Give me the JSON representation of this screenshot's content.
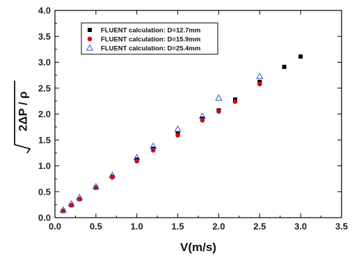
{
  "chart_data": {
    "type": "scatter",
    "title": "",
    "xlabel": "V(m/s)",
    "ylabel_radicand": "2ΔP / ρ",
    "xlim": [
      0.0,
      3.5
    ],
    "ylim": [
      0.0,
      4.0
    ],
    "x_ticks": [
      "0.0",
      "0.5",
      "1.0",
      "1.5",
      "2.0",
      "2.5",
      "3.0",
      "3.5"
    ],
    "y_ticks": [
      "0.0",
      "0.5",
      "1.0",
      "1.5",
      "2.0",
      "2.5",
      "3.0",
      "3.5",
      "4.0"
    ],
    "grid": false,
    "legend_position": "top-left",
    "series": [
      {
        "name": "FLUENT calculation: D=12.7mm",
        "marker": "square",
        "color": "#000000",
        "x": [
          0.1,
          0.2,
          0.3,
          0.5,
          0.7,
          1.0,
          1.2,
          1.5,
          1.8,
          2.0,
          2.2,
          2.5,
          2.8,
          3.0
        ],
        "y": [
          0.13,
          0.24,
          0.36,
          0.58,
          0.79,
          1.12,
          1.33,
          1.63,
          1.91,
          2.07,
          2.28,
          2.62,
          2.91,
          3.11
        ]
      },
      {
        "name": "FLUENT calculation: D=15.9mm",
        "marker": "circle",
        "color": "#e00000",
        "x": [
          0.1,
          0.2,
          0.3,
          0.5,
          0.7,
          1.0,
          1.2,
          1.5,
          1.8,
          2.0,
          2.2,
          2.5
        ],
        "y": [
          0.13,
          0.24,
          0.36,
          0.58,
          0.78,
          1.09,
          1.3,
          1.59,
          1.88,
          2.05,
          2.24,
          2.58
        ]
      },
      {
        "name": "FLUENT calculation: D=25.4mm",
        "marker": "triangle-open",
        "color": "#3355cc",
        "x": [
          0.1,
          0.2,
          0.3,
          0.5,
          0.7,
          1.0,
          1.2,
          1.5,
          1.8,
          2.0,
          2.5
        ],
        "y": [
          0.15,
          0.27,
          0.39,
          0.6,
          0.82,
          1.16,
          1.38,
          1.71,
          1.96,
          2.31,
          2.73
        ]
      }
    ]
  }
}
